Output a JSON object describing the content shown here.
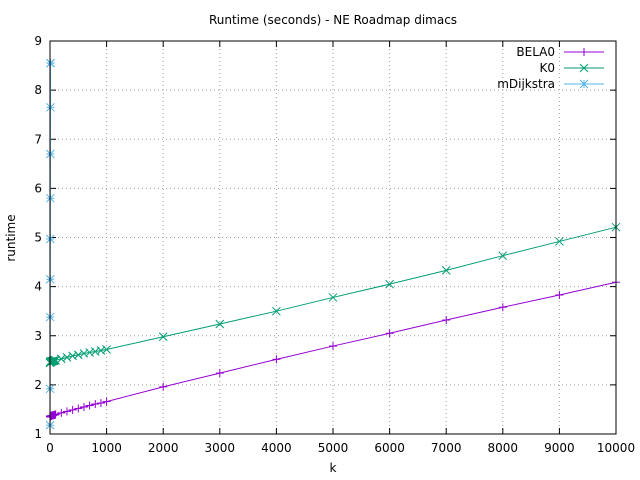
{
  "chart_data": {
    "type": "line",
    "title": "Runtime (seconds) - NE Roadmap dimacs",
    "xlabel": "k",
    "ylabel": "runtime",
    "xlim": [
      0,
      10000
    ],
    "ylim": [
      1,
      9
    ],
    "xticks": [
      0,
      1000,
      2000,
      3000,
      4000,
      5000,
      6000,
      7000,
      8000,
      9000,
      10000
    ],
    "yticks": [
      1,
      2,
      3,
      4,
      5,
      6,
      7,
      8,
      9
    ],
    "grid": true,
    "legend_position": "top-right",
    "series": [
      {
        "name": "BELA0",
        "color": "#9400d3",
        "marker": "plus",
        "x": [
          1,
          2,
          3,
          4,
          5,
          6,
          7,
          8,
          9,
          10,
          20,
          30,
          40,
          50,
          60,
          70,
          80,
          90,
          100,
          200,
          300,
          400,
          500,
          600,
          700,
          800,
          900,
          1000,
          2000,
          3000,
          4000,
          5000,
          6000,
          7000,
          8000,
          9000,
          10000
        ],
        "y": [
          1.35,
          1.35,
          1.35,
          1.36,
          1.36,
          1.36,
          1.36,
          1.36,
          1.36,
          1.37,
          1.37,
          1.37,
          1.38,
          1.38,
          1.38,
          1.39,
          1.39,
          1.39,
          1.4,
          1.43,
          1.46,
          1.49,
          1.52,
          1.55,
          1.58,
          1.61,
          1.63,
          1.66,
          1.96,
          2.24,
          2.52,
          2.79,
          3.05,
          3.32,
          3.58,
          3.83,
          4.09
        ]
      },
      {
        "name": "K0",
        "color": "#009e73",
        "marker": "cross",
        "x": [
          1,
          2,
          3,
          4,
          5,
          6,
          7,
          8,
          9,
          10,
          20,
          30,
          40,
          50,
          60,
          70,
          80,
          90,
          100,
          200,
          300,
          400,
          500,
          600,
          700,
          800,
          900,
          1000,
          2000,
          3000,
          4000,
          5000,
          6000,
          7000,
          8000,
          9000,
          10000
        ],
        "y": [
          2.45,
          2.45,
          2.46,
          2.46,
          2.46,
          2.46,
          2.47,
          2.47,
          2.47,
          2.47,
          2.48,
          2.48,
          2.48,
          2.49,
          2.49,
          2.49,
          2.5,
          2.5,
          2.5,
          2.53,
          2.56,
          2.59,
          2.61,
          2.64,
          2.66,
          2.68,
          2.7,
          2.72,
          2.98,
          3.24,
          3.5,
          3.78,
          4.05,
          4.33,
          4.63,
          4.92,
          5.21
        ]
      },
      {
        "name": "mDijkstra",
        "color": "#56b4e9",
        "marker": "star",
        "x": [
          1,
          2,
          3,
          4,
          5,
          6,
          7,
          8,
          9,
          10
        ],
        "y": [
          1.18,
          1.92,
          3.38,
          4.15,
          4.97,
          5.8,
          6.7,
          7.65,
          8.55,
          8.55
        ]
      }
    ]
  }
}
